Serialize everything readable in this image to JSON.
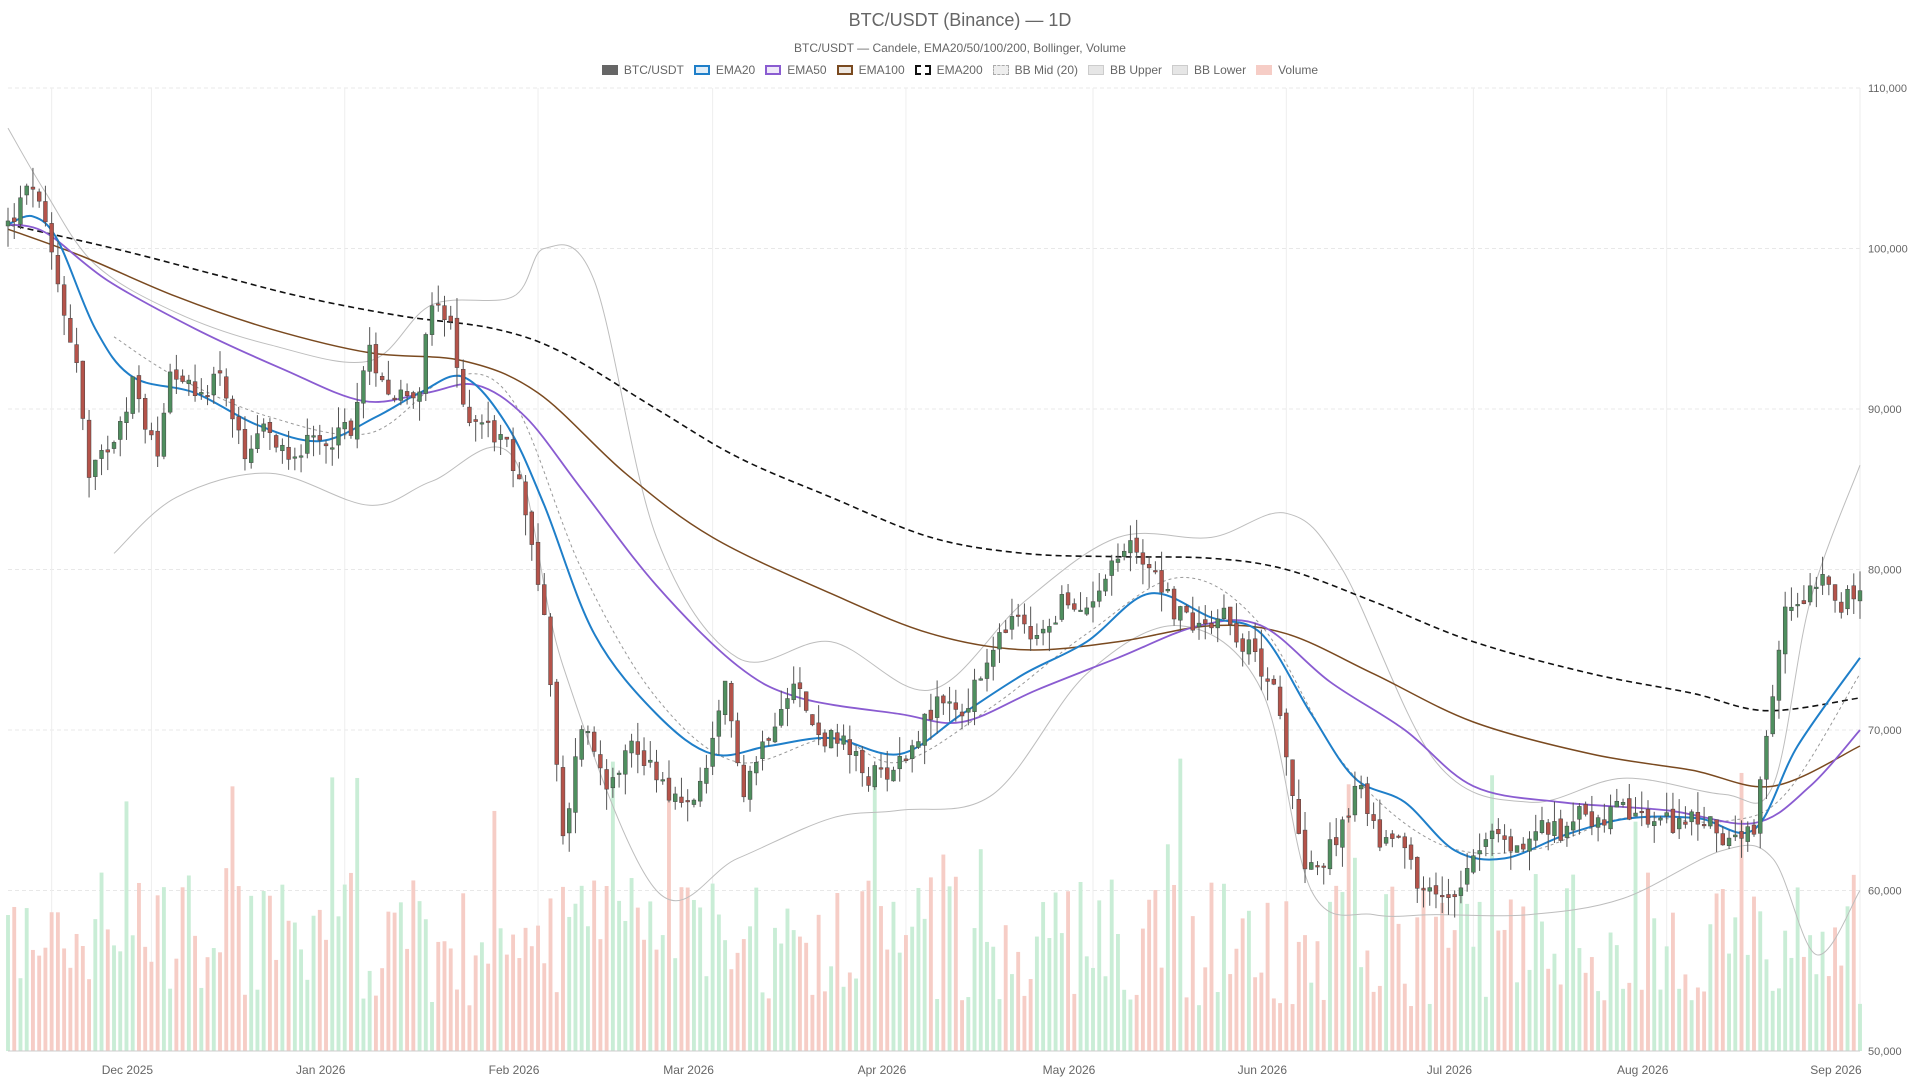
{
  "chart_data": {
    "type": "candlestick",
    "title": "BTC/USDT (Binance) — 1D",
    "subtitle": "BTC/USDT — Candele, EMA20/50/100/200, Bollinger, Volume",
    "legend_position": "top-center",
    "legend": [
      {
        "name": "BTC/USDT",
        "color": "#666666",
        "style": "solid-fill"
      },
      {
        "name": "EMA20",
        "color": "#1f7fc9",
        "style": "line"
      },
      {
        "name": "EMA50",
        "color": "#8a5cd1",
        "style": "line"
      },
      {
        "name": "EMA100",
        "color": "#7a4a20",
        "style": "line"
      },
      {
        "name": "EMA200",
        "color": "#111111",
        "style": "dashed"
      },
      {
        "name": "BB Mid (20)",
        "color": "#999999",
        "style": "dotted"
      },
      {
        "name": "BB Upper",
        "color": "#bbbbbb",
        "style": "line"
      },
      {
        "name": "BB Lower",
        "color": "#bbbbbb",
        "style": "line"
      },
      {
        "name": "Volume",
        "color": "#f4b6ac",
        "style": "bar"
      }
    ],
    "colors": {
      "up": "#4f8f5f",
      "down": "#b5534a",
      "volume_up": "#c9edd6",
      "volume_down": "#f6cdc6",
      "grid": "#e8e8e8"
    },
    "x_ticks": [
      "Dec 2025",
      "Jan 2026",
      "Feb 2026",
      "Mar 2026",
      "Apr 2026",
      "May 2026",
      "Jun 2026",
      "Jul 2026",
      "Aug 2026",
      "Sep 2026"
    ],
    "x_range": [
      "2025-11-08",
      "2026-09-01"
    ],
    "y_ticks": [
      "50,000",
      "60,000",
      "70,000",
      "80,000",
      "90,000",
      "100,000",
      "110,000"
    ],
    "ylim": [
      50000,
      110000
    ],
    "price_anchors": [
      [
        "2025-11-08",
        101500
      ],
      [
        "2025-11-12",
        104000
      ],
      [
        "2025-11-14",
        101000
      ],
      [
        "2025-11-17",
        96000
      ],
      [
        "2025-11-19",
        93000
      ],
      [
        "2025-11-21",
        85500
      ],
      [
        "2025-11-25",
        88500
      ],
      [
        "2025-11-28",
        91500
      ],
      [
        "2025-12-02",
        87000
      ],
      [
        "2025-12-04",
        93000
      ],
      [
        "2025-12-08",
        90500
      ],
      [
        "2025-12-12",
        92500
      ],
      [
        "2025-12-16",
        86500
      ],
      [
        "2025-12-19",
        88500
      ],
      [
        "2025-12-23",
        87500
      ],
      [
        "2025-12-28",
        87800
      ],
      [
        "2026-01-02",
        89000
      ],
      [
        "2026-01-05",
        93500
      ],
      [
        "2026-01-09",
        90800
      ],
      [
        "2026-01-13",
        91500
      ],
      [
        "2026-01-15",
        96500
      ],
      [
        "2026-01-18",
        95000
      ],
      [
        "2026-01-20",
        90000
      ],
      [
        "2026-01-24",
        89000
      ],
      [
        "2026-01-27",
        87500
      ],
      [
        "2026-01-30",
        84000
      ],
      [
        "2026-02-02",
        77000
      ],
      [
        "2026-02-05",
        63000
      ],
      [
        "2026-02-08",
        70500
      ],
      [
        "2026-02-12",
        67000
      ],
      [
        "2026-02-16",
        69000
      ],
      [
        "2026-02-20",
        67500
      ],
      [
        "2026-02-24",
        65000
      ],
      [
        "2026-02-28",
        67000
      ],
      [
        "2026-03-03",
        72500
      ],
      [
        "2026-03-06",
        66500
      ],
      [
        "2026-03-10",
        70000
      ],
      [
        "2026-03-14",
        73500
      ],
      [
        "2026-03-17",
        70000
      ],
      [
        "2026-03-22",
        69000
      ],
      [
        "2026-03-26",
        67000
      ],
      [
        "2026-03-31",
        68000
      ],
      [
        "2026-04-04",
        70500
      ],
      [
        "2026-04-07",
        72000
      ],
      [
        "2026-04-10",
        71000
      ],
      [
        "2026-04-14",
        74000
      ],
      [
        "2026-04-18",
        77000
      ],
      [
        "2026-04-22",
        75500
      ],
      [
        "2026-04-26",
        78000
      ],
      [
        "2026-04-29",
        77000
      ],
      [
        "2026-05-03",
        80000
      ],
      [
        "2026-05-07",
        81500
      ],
      [
        "2026-05-11",
        80000
      ],
      [
        "2026-05-14",
        77500
      ],
      [
        "2026-05-18",
        76500
      ],
      [
        "2026-05-22",
        77500
      ],
      [
        "2026-05-25",
        75500
      ],
      [
        "2026-05-28",
        74000
      ],
      [
        "2026-05-30",
        73000
      ],
      [
        "2026-06-02",
        65500
      ],
      [
        "2026-06-04",
        62000
      ],
      [
        "2026-06-07",
        61500
      ],
      [
        "2026-06-10",
        64500
      ],
      [
        "2026-06-13",
        66500
      ],
      [
        "2026-06-16",
        63000
      ],
      [
        "2026-06-19",
        64000
      ],
      [
        "2026-06-22",
        60500
      ],
      [
        "2026-06-25",
        59500
      ],
      [
        "2026-06-28",
        60000
      ],
      [
        "2026-07-01",
        62500
      ],
      [
        "2026-07-04",
        63500
      ],
      [
        "2026-07-08",
        62500
      ],
      [
        "2026-07-12",
        64000
      ],
      [
        "2026-07-15",
        63500
      ],
      [
        "2026-07-18",
        65500
      ],
      [
        "2026-07-21",
        64000
      ],
      [
        "2026-07-24",
        65000
      ],
      [
        "2026-07-28",
        64500
      ],
      [
        "2026-08-01",
        64200
      ],
      [
        "2026-08-05",
        64500
      ],
      [
        "2026-08-09",
        63800
      ],
      [
        "2026-08-12",
        63000
      ],
      [
        "2026-08-15",
        63500
      ],
      [
        "2026-08-17",
        69000
      ],
      [
        "2026-08-20",
        77500
      ],
      [
        "2026-08-23",
        78500
      ],
      [
        "2026-08-26",
        80000
      ],
      [
        "2026-08-29",
        78000
      ],
      [
        "2026-09-01",
        78500
      ]
    ],
    "ema20": [
      [
        "2025-11-08",
        101500
      ],
      [
        "2025-11-12",
        102000
      ],
      [
        "2025-11-16",
        100500
      ],
      [
        "2025-11-22",
        95000
      ],
      [
        "2025-11-28",
        92000
      ],
      [
        "2025-12-08",
        91000
      ],
      [
        "2025-12-18",
        89000
      ],
      [
        "2025-12-28",
        88000
      ],
      [
        "2026-01-06",
        89500
      ],
      [
        "2026-01-13",
        91000
      ],
      [
        "2026-01-20",
        92000
      ],
      [
        "2026-01-27",
        89000
      ],
      [
        "2026-02-02",
        84000
      ],
      [
        "2026-02-10",
        76000
      ],
      [
        "2026-02-20",
        71000
      ],
      [
        "2026-03-01",
        68500
      ],
      [
        "2026-03-10",
        69000
      ],
      [
        "2026-03-20",
        69500
      ],
      [
        "2026-03-31",
        68500
      ],
      [
        "2026-04-10",
        71000
      ],
      [
        "2026-04-20",
        73500
      ],
      [
        "2026-04-30",
        75500
      ],
      [
        "2026-05-10",
        78500
      ],
      [
        "2026-05-20",
        77000
      ],
      [
        "2026-05-28",
        76000
      ],
      [
        "2026-06-05",
        71000
      ],
      [
        "2026-06-12",
        67000
      ],
      [
        "2026-06-20",
        65500
      ],
      [
        "2026-06-28",
        62500
      ],
      [
        "2026-07-06",
        62000
      ],
      [
        "2026-07-16",
        63500
      ],
      [
        "2026-07-26",
        64500
      ],
      [
        "2026-08-06",
        64500
      ],
      [
        "2026-08-15",
        63800
      ],
      [
        "2026-08-22",
        69000
      ],
      [
        "2026-09-01",
        74500
      ]
    ],
    "ema50": [
      [
        "2025-11-08",
        101500
      ],
      [
        "2025-11-14",
        101000
      ],
      [
        "2025-11-24",
        98000
      ],
      [
        "2025-12-08",
        95000
      ],
      [
        "2025-12-22",
        92500
      ],
      [
        "2026-01-04",
        90500
      ],
      [
        "2026-01-14",
        91000
      ],
      [
        "2026-01-22",
        91500
      ],
      [
        "2026-01-30",
        89500
      ],
      [
        "2026-02-08",
        85000
      ],
      [
        "2026-02-20",
        79000
      ],
      [
        "2026-03-05",
        74000
      ],
      [
        "2026-03-15",
        72000
      ],
      [
        "2026-03-31",
        71000
      ],
      [
        "2026-04-10",
        70500
      ],
      [
        "2026-04-22",
        72500
      ],
      [
        "2026-05-05",
        74500
      ],
      [
        "2026-05-18",
        76500
      ],
      [
        "2026-05-28",
        76500
      ],
      [
        "2026-06-08",
        73000
      ],
      [
        "2026-06-20",
        70000
      ],
      [
        "2026-07-01",
        66500
      ],
      [
        "2026-07-15",
        65500
      ],
      [
        "2026-08-01",
        65000
      ],
      [
        "2026-08-15",
        64200
      ],
      [
        "2026-08-24",
        66500
      ],
      [
        "2026-09-01",
        70000
      ]
    ],
    "ema100": [
      [
        "2025-11-08",
        101200
      ],
      [
        "2025-11-20",
        99500
      ],
      [
        "2025-12-05",
        97000
      ],
      [
        "2025-12-20",
        95000
      ],
      [
        "2026-01-05",
        93500
      ],
      [
        "2026-01-20",
        93000
      ],
      [
        "2026-02-01",
        91000
      ],
      [
        "2026-02-15",
        86000
      ],
      [
        "2026-03-01",
        82000
      ],
      [
        "2026-03-20",
        78500
      ],
      [
        "2026-04-05",
        76000
      ],
      [
        "2026-04-20",
        75000
      ],
      [
        "2026-05-05",
        75500
      ],
      [
        "2026-05-20",
        76500
      ],
      [
        "2026-06-01",
        76000
      ],
      [
        "2026-06-15",
        73500
      ],
      [
        "2026-07-01",
        70500
      ],
      [
        "2026-07-20",
        68500
      ],
      [
        "2026-08-05",
        67500
      ],
      [
        "2026-08-18",
        66500
      ],
      [
        "2026-09-01",
        69000
      ]
    ],
    "ema200": [
      [
        "2025-11-08",
        101500
      ],
      [
        "2025-11-25",
        100000
      ],
      [
        "2025-12-10",
        98500
      ],
      [
        "2025-12-25",
        97000
      ],
      [
        "2026-01-10",
        95800
      ],
      [
        "2026-01-25",
        95000
      ],
      [
        "2026-02-05",
        93500
      ],
      [
        "2026-02-20",
        90000
      ],
      [
        "2026-03-05",
        87000
      ],
      [
        "2026-03-20",
        84500
      ],
      [
        "2026-04-05",
        82000
      ],
      [
        "2026-04-20",
        81000
      ],
      [
        "2026-05-05",
        80800
      ],
      [
        "2026-05-20",
        80700
      ],
      [
        "2026-06-01",
        80000
      ],
      [
        "2026-06-15",
        78000
      ],
      [
        "2026-07-01",
        75500
      ],
      [
        "2026-07-20",
        73500
      ],
      [
        "2026-08-05",
        72300
      ],
      [
        "2026-08-17",
        71200
      ],
      [
        "2026-09-01",
        72000
      ]
    ],
    "bb_mid": [
      [
        "2025-11-25",
        94500
      ],
      [
        "2025-12-05",
        92000
      ],
      [
        "2025-12-20",
        89500
      ],
      [
        "2026-01-05",
        88500
      ],
      [
        "2026-01-18",
        92000
      ],
      [
        "2026-01-28",
        90500
      ],
      [
        "2026-02-08",
        80000
      ],
      [
        "2026-02-20",
        72000
      ],
      [
        "2026-03-05",
        68000
      ],
      [
        "2026-03-20",
        69500
      ],
      [
        "2026-03-31",
        68000
      ],
      [
        "2026-04-15",
        71500
      ],
      [
        "2026-04-30",
        76000
      ],
      [
        "2026-05-15",
        79500
      ],
      [
        "2026-05-28",
        76500
      ],
      [
        "2026-06-10",
        68000
      ],
      [
        "2026-06-25",
        63000
      ],
      [
        "2026-07-10",
        62500
      ],
      [
        "2026-07-25",
        64500
      ],
      [
        "2026-08-10",
        64300
      ],
      [
        "2026-08-20",
        66000
      ],
      [
        "2026-09-01",
        73500
      ]
    ],
    "bb_upper": [
      [
        "2025-11-08",
        107500
      ],
      [
        "2025-11-14",
        103500
      ],
      [
        "2025-11-22",
        99000
      ],
      [
        "2025-12-05",
        96000
      ],
      [
        "2025-12-20",
        94000
      ],
      [
        "2026-01-05",
        93000
      ],
      [
        "2026-01-15",
        96500
      ],
      [
        "2026-01-28",
        97000
      ],
      [
        "2026-02-02",
        100000
      ],
      [
        "2026-02-10",
        98000
      ],
      [
        "2026-02-20",
        82000
      ],
      [
        "2026-03-05",
        74500
      ],
      [
        "2026-03-20",
        75500
      ],
      [
        "2026-04-05",
        72500
      ],
      [
        "2026-04-20",
        78000
      ],
      [
        "2026-05-05",
        82000
      ],
      [
        "2026-05-20",
        82000
      ],
      [
        "2026-06-01",
        83500
      ],
      [
        "2026-06-10",
        80000
      ],
      [
        "2026-06-25",
        68000
      ],
      [
        "2026-07-10",
        65500
      ],
      [
        "2026-07-25",
        67000
      ],
      [
        "2026-08-10",
        66000
      ],
      [
        "2026-08-18",
        66500
      ],
      [
        "2026-08-24",
        78000
      ],
      [
        "2026-09-01",
        86500
      ]
    ],
    "bb_lower": [
      [
        "2025-11-25",
        81000
      ],
      [
        "2025-12-05",
        84500
      ],
      [
        "2025-12-20",
        86000
      ],
      [
        "2026-01-05",
        84000
      ],
      [
        "2026-01-15",
        85500
      ],
      [
        "2026-01-28",
        87000
      ],
      [
        "2026-02-05",
        74000
      ],
      [
        "2026-02-20",
        60000
      ],
      [
        "2026-03-05",
        62000
      ],
      [
        "2026-03-20",
        64500
      ],
      [
        "2026-03-31",
        65000
      ],
      [
        "2026-04-15",
        66000
      ],
      [
        "2026-04-30",
        73500
      ],
      [
        "2026-05-15",
        76500
      ],
      [
        "2026-05-28",
        72500
      ],
      [
        "2026-06-05",
        60000
      ],
      [
        "2026-06-15",
        58500
      ],
      [
        "2026-06-25",
        58500
      ],
      [
        "2026-07-10",
        58500
      ],
      [
        "2026-07-25",
        59500
      ],
      [
        "2026-08-10",
        62500
      ],
      [
        "2026-08-18",
        62000
      ],
      [
        "2026-08-25",
        56000
      ],
      [
        "2026-09-01",
        60000
      ]
    ]
  }
}
